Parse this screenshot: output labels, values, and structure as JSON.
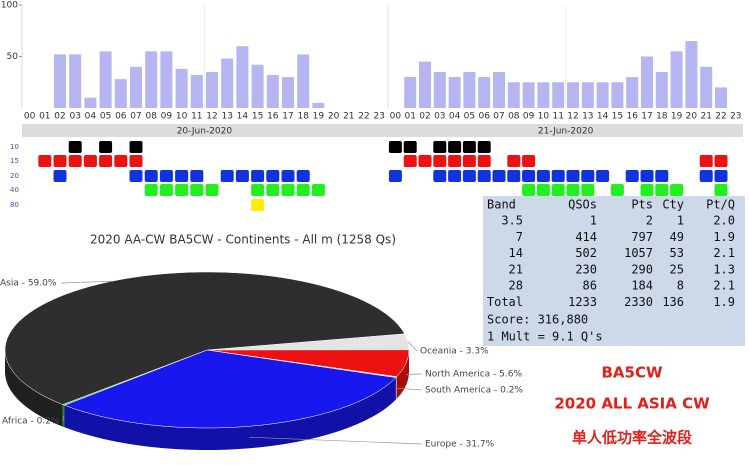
{
  "chart_data": [
    {
      "type": "bar",
      "xlabel": "20-Jun-2020",
      "color": "#a8a8f0",
      "categories": [
        "00",
        "01",
        "02",
        "03",
        "04",
        "05",
        "06",
        "07",
        "08",
        "09",
        "10",
        "11",
        "12",
        "13",
        "14",
        "15",
        "16",
        "17",
        "18",
        "19",
        "20",
        "21",
        "22",
        "23"
      ],
      "values": [
        0,
        0,
        52,
        52,
        10,
        55,
        28,
        40,
        55,
        55,
        38,
        32,
        35,
        48,
        60,
        42,
        32,
        30,
        52,
        5,
        0,
        0,
        0,
        0
      ],
      "ylim": [
        0,
        100
      ],
      "yticks": [
        50,
        100
      ]
    },
    {
      "type": "bar",
      "xlabel": "21-Jun-2020",
      "color": "#a8a8f0",
      "categories": [
        "00",
        "01",
        "02",
        "03",
        "04",
        "05",
        "06",
        "07",
        "08",
        "09",
        "10",
        "11",
        "12",
        "13",
        "14",
        "15",
        "16",
        "17",
        "18",
        "19",
        "20",
        "21",
        "22",
        "23"
      ],
      "values": [
        0,
        30,
        45,
        35,
        30,
        35,
        30,
        35,
        25,
        25,
        25,
        25,
        25,
        25,
        25,
        25,
        30,
        50,
        35,
        55,
        65,
        40,
        20,
        0
      ],
      "ylim": [
        0,
        100
      ]
    },
    {
      "type": "pie",
      "title": "2020 AA-CW BA5CW - Continents - All m (1258 Qs)",
      "categories": [
        "Oceania",
        "North America",
        "South America",
        "Europe",
        "Africa",
        "Asia"
      ],
      "values": [
        3.3,
        5.6,
        0.2,
        31.7,
        0.2,
        59.0
      ],
      "value_labels": [
        "Oceania - 3.3%",
        "North America - 5.6%",
        "South America - 0.2%",
        "Europe - 31.7%",
        "Africa - 0.2%",
        "Asia - 59.0%"
      ],
      "colors": [
        "#e4e4e4",
        "#ee1111",
        "#ffd0d0",
        "#1818ee",
        "#22cc22",
        "#2e2e2e"
      ]
    }
  ],
  "band_activity": {
    "bands": [
      "10",
      "15",
      "20",
      "40",
      "80"
    ],
    "colors": [
      "#000000",
      "#ee1111",
      "#1133dd",
      "#22ee22",
      "#ffee00"
    ],
    "day1": [
      [
        3,
        5,
        7
      ],
      [
        1,
        2,
        3,
        4,
        5,
        6,
        7
      ],
      [
        2,
        7,
        8,
        9,
        10,
        11,
        13,
        14,
        15,
        16,
        17,
        18
      ],
      [
        8,
        9,
        10,
        11,
        12,
        15,
        16,
        17,
        18,
        19
      ],
      [
        15
      ]
    ],
    "day2": [
      [
        0,
        1,
        3,
        4,
        5,
        6
      ],
      [
        1,
        2,
        3,
        4,
        5,
        6,
        8,
        9,
        21,
        22
      ],
      [
        0,
        3,
        4,
        5,
        6,
        7,
        8,
        9,
        10,
        11,
        12,
        13,
        14,
        16,
        17,
        18,
        21,
        22
      ],
      [
        9,
        10,
        11,
        12,
        13,
        15,
        17,
        18,
        19,
        22
      ],
      []
    ]
  },
  "table": {
    "columns": [
      "Band",
      "QSOs",
      "Pts",
      "Cty",
      "Pt/Q"
    ],
    "rows": [
      [
        "3.5",
        "1",
        "2",
        "1",
        "2.0"
      ],
      [
        "7",
        "414",
        "797",
        "49",
        "1.9"
      ],
      [
        "14",
        "502",
        "1057",
        "53",
        "2.1"
      ],
      [
        "21",
        "230",
        "290",
        "25",
        "1.3"
      ],
      [
        "28",
        "86",
        "184",
        "8",
        "2.1"
      ],
      [
        "Total",
        "1233",
        "2330",
        "136",
        "1.9"
      ]
    ],
    "notes": [
      "Score: 316,880",
      "1 Mult = 9.1 Q's"
    ]
  },
  "caption": [
    "BA5CW",
    "2020 ALL ASIA CW",
    "单人低功率全波段"
  ]
}
